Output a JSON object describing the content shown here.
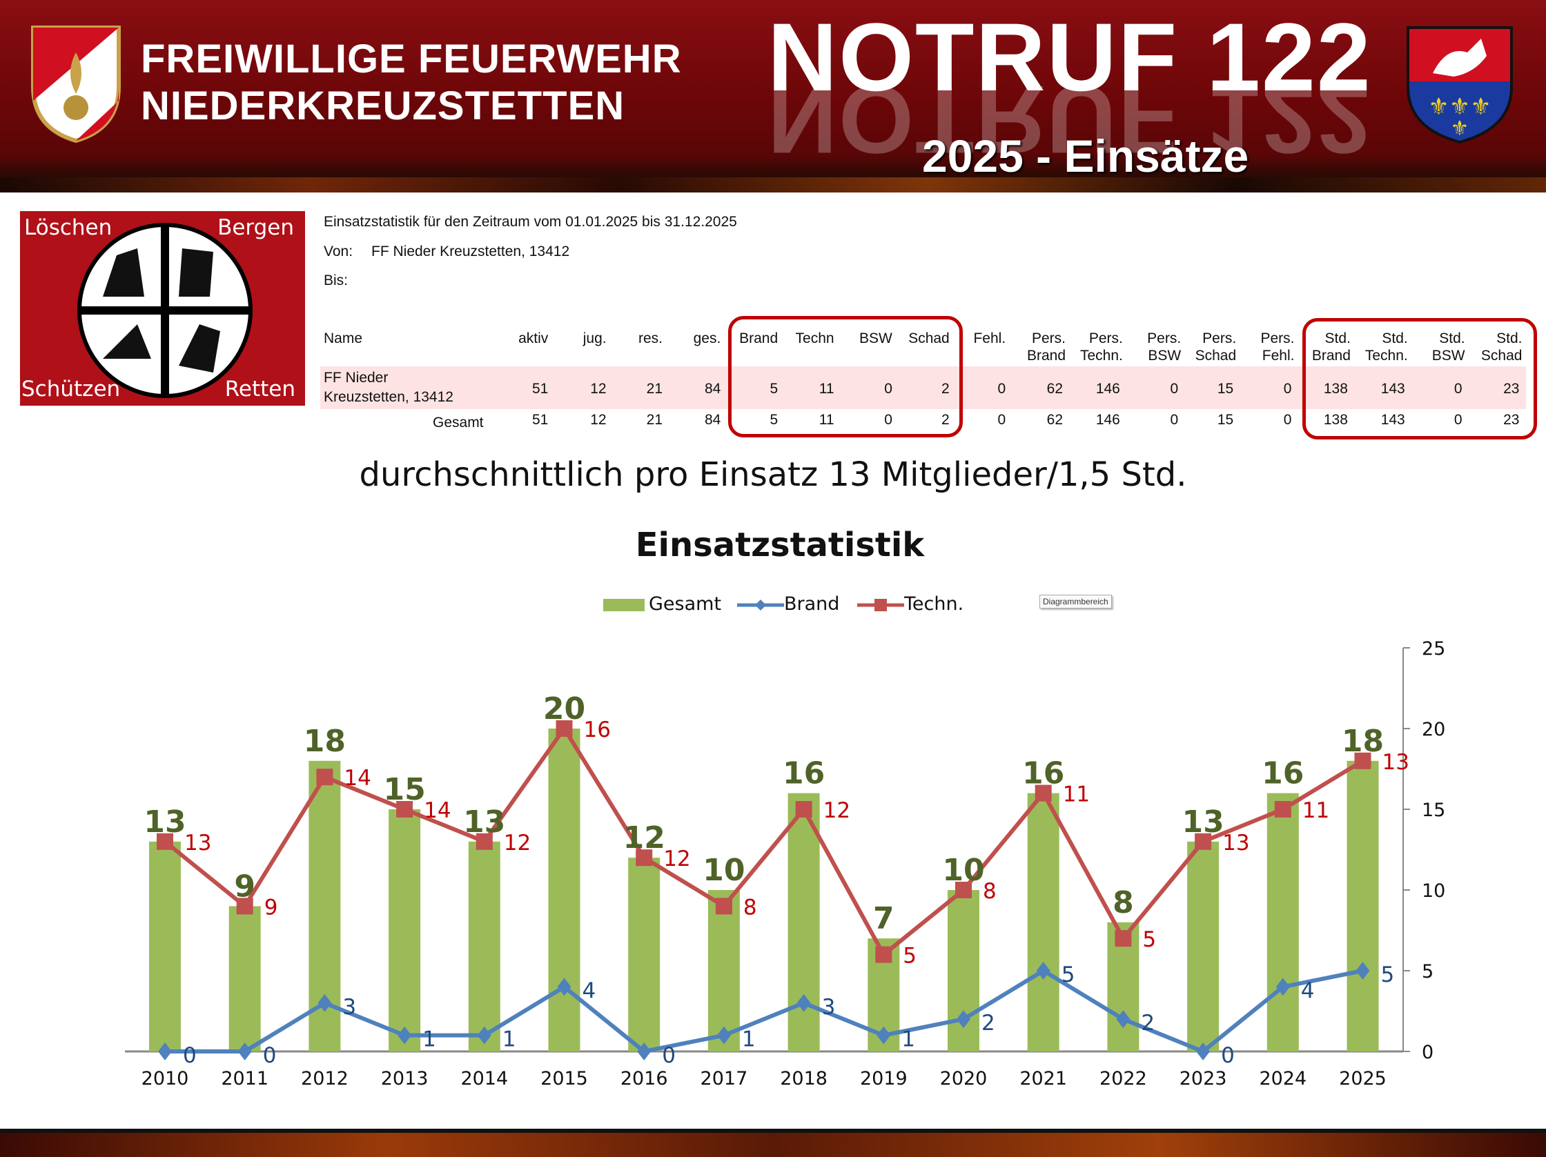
{
  "header": {
    "org_line1": "FREIWILLIGE FEUERWEHR",
    "org_line2": "NIEDERKREUZSTETTEN",
    "emergency": "NOTRUF 122",
    "subtitle": "2025 - Einsätze"
  },
  "emblem": {
    "top_left": "Löschen",
    "top_right": "Bergen",
    "bottom_left": "Schützen",
    "bottom_right": "Retten"
  },
  "report": {
    "period": "Einsatzstatistik für den Zeitraum vom 01.01.2025 bis 31.12.2025",
    "von_label": "Von:",
    "von_value": "FF Nieder Kreuzstetten, 13412",
    "bis_label": "Bis:"
  },
  "table": {
    "name_header": "Name",
    "headers": [
      [
        "aktiv"
      ],
      [
        "jug."
      ],
      [
        "res."
      ],
      [
        "ges."
      ],
      [
        "Brand"
      ],
      [
        "Techn"
      ],
      [
        "BSW"
      ],
      [
        "Schad"
      ],
      [
        "Fehl."
      ],
      [
        "Pers.",
        "Brand"
      ],
      [
        "Pers.",
        "Techn."
      ],
      [
        "Pers.",
        "BSW"
      ],
      [
        "Pers.",
        "Schad"
      ],
      [
        "Pers.",
        "Fehl."
      ],
      [
        "Std.",
        "Brand"
      ],
      [
        "Std.",
        "Techn."
      ],
      [
        "Std.",
        "BSW"
      ],
      [
        "Std.",
        "Schad"
      ]
    ],
    "rows": [
      {
        "name1": "FF Nieder",
        "name2": "Kreuzstetten, 13412",
        "values": [
          "51",
          "12",
          "21",
          "84",
          "5",
          "11",
          "0",
          "2",
          "0",
          "62",
          "146",
          "0",
          "15",
          "0",
          "138",
          "143",
          "0",
          "23"
        ]
      },
      {
        "name1": "Gesamt",
        "values": [
          "51",
          "12",
          "21",
          "84",
          "5",
          "11",
          "0",
          "2",
          "0",
          "62",
          "146",
          "0",
          "15",
          "0",
          "138",
          "143",
          "0",
          "23"
        ]
      }
    ]
  },
  "average_text": "durchschnittlich pro Einsatz 13 Mitglieder/1,5 Std.",
  "tooltip": "Diagrammbereich",
  "colors": {
    "gesamt": "#9bbb59",
    "brand": "#4f81bd",
    "techn": "#c0504d",
    "gesamt_label": "#4f6228",
    "brand_label": "#1f497d",
    "techn_label": "#c00000"
  },
  "chart_data": {
    "type": "bar",
    "title": "Einsatzstatistik",
    "categories": [
      "2010",
      "2011",
      "2012",
      "2013",
      "2014",
      "2015",
      "2016",
      "2017",
      "2018",
      "2019",
      "2020",
      "2021",
      "2022",
      "2023",
      "2024",
      "2025"
    ],
    "series": [
      {
        "name": "Gesamt",
        "type": "bar",
        "values": [
          13,
          9,
          18,
          15,
          13,
          20,
          12,
          10,
          16,
          7,
          10,
          16,
          8,
          13,
          16,
          18
        ]
      },
      {
        "name": "Brand",
        "type": "line",
        "values": [
          0,
          0,
          3,
          1,
          1,
          4,
          0,
          1,
          3,
          1,
          2,
          5,
          2,
          0,
          4,
          5
        ]
      },
      {
        "name": "Techn.",
        "type": "line",
        "stacked": true,
        "values": [
          13,
          9,
          14,
          14,
          12,
          16,
          12,
          8,
          12,
          5,
          8,
          11,
          5,
          13,
          11,
          13
        ]
      }
    ],
    "ylim": [
      0,
      25
    ],
    "yticks": [
      "0",
      "5",
      "10",
      "15",
      "20",
      "25"
    ],
    "y_axis_side": "right",
    "legend": "top",
    "grid": false
  }
}
